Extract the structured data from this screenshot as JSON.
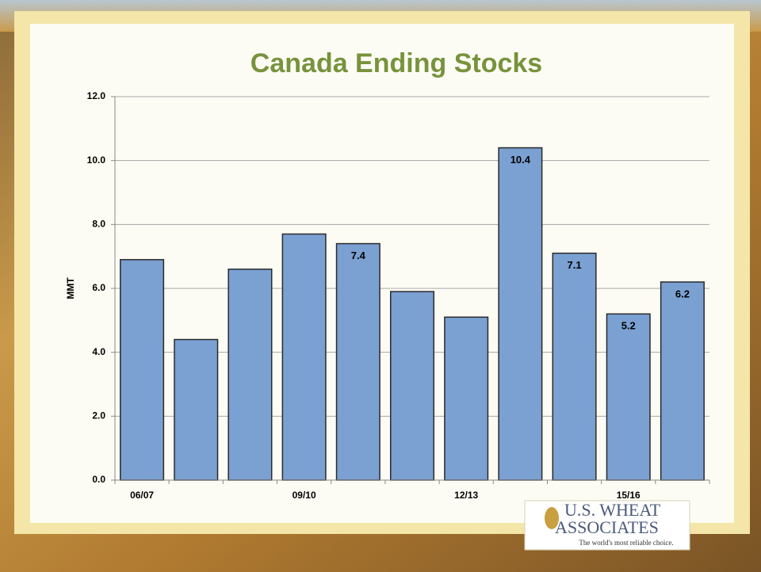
{
  "chart_data": {
    "type": "bar",
    "title": "Canada Ending Stocks",
    "y_label": "MMT",
    "categories": [
      "06/07",
      null,
      null,
      "09/10",
      null,
      null,
      "12/13",
      null,
      null,
      "15/16",
      null
    ],
    "values": [
      6.9,
      4.4,
      6.6,
      7.7,
      7.4,
      5.9,
      5.1,
      10.4,
      7.1,
      5.2,
      6.2
    ],
    "value_labels": [
      null,
      null,
      null,
      null,
      "7.4",
      null,
      null,
      "10.4",
      "7.1",
      "5.2",
      "6.2"
    ],
    "color": "#7ba0d2",
    "ylim": [
      0,
      12
    ],
    "yticks": [
      {
        "value": 0,
        "label": "0.0"
      },
      {
        "value": 2,
        "label": "2.0"
      },
      {
        "value": 4,
        "label": "4.0"
      },
      {
        "value": 6,
        "label": "6.0"
      },
      {
        "value": 8,
        "label": "8.0"
      },
      {
        "value": 10,
        "label": "10.0"
      },
      {
        "value": 12,
        "label": "12.0"
      }
    ],
    "grid": true
  },
  "logo": {
    "name_line1": "U.S. WHEAT",
    "name_line2": "ASSOCIATES",
    "tagline": "The world's most reliable choice."
  }
}
